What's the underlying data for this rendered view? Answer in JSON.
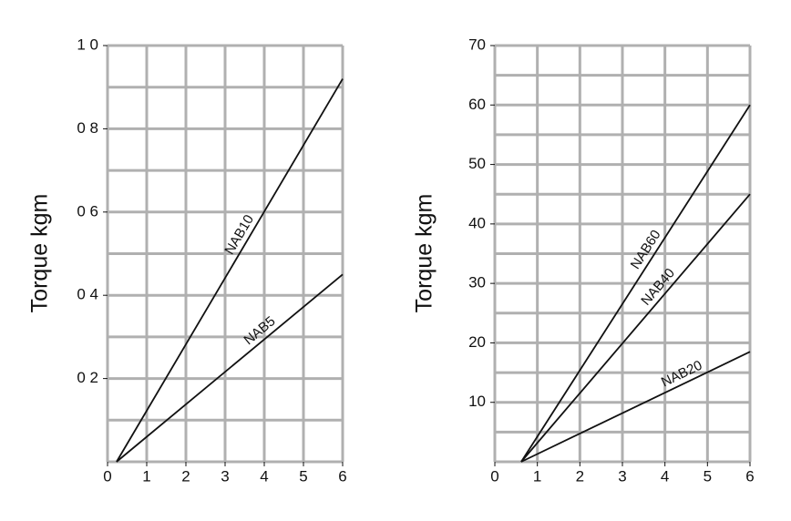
{
  "chart_data": [
    {
      "type": "line",
      "ylabel": "Torque kgm",
      "xlim": [
        0,
        6
      ],
      "xticks": [
        0,
        1,
        2,
        3,
        4,
        5,
        6
      ],
      "ylim": [
        0,
        1.0
      ],
      "yticks": [
        {
          "value": 0.2,
          "label": "0 2"
        },
        {
          "value": 0.4,
          "label": "0 4"
        },
        {
          "value": 0.6,
          "label": "0 6"
        },
        {
          "value": 0.8,
          "label": "0 8"
        },
        {
          "value": 1.0,
          "label": "1 0"
        }
      ],
      "grid": true,
      "series": [
        {
          "name": "NAB10",
          "color": "#111111",
          "x": [
            0.23,
            6
          ],
          "values": [
            0,
            0.92
          ]
        },
        {
          "name": "NAB5",
          "color": "#111111",
          "x": [
            0.23,
            6
          ],
          "values": [
            0,
            0.45
          ]
        }
      ]
    },
    {
      "type": "line",
      "ylabel": "Torque kgm",
      "xlim": [
        0,
        6
      ],
      "xticks": [
        0,
        1,
        2,
        3,
        4,
        5,
        6
      ],
      "ylim": [
        0,
        70
      ],
      "yticks": [
        10,
        20,
        30,
        40,
        50,
        60,
        70
      ],
      "grid": true,
      "series": [
        {
          "name": "NAB60",
          "color": "#111111",
          "x": [
            0.62,
            6
          ],
          "values": [
            0,
            60
          ]
        },
        {
          "name": "NAB40",
          "color": "#111111",
          "x": [
            0.62,
            6
          ],
          "values": [
            0,
            45
          ]
        },
        {
          "name": "NAB20",
          "color": "#111111",
          "x": [
            0.62,
            6
          ],
          "values": [
            0,
            18.5
          ]
        }
      ]
    }
  ]
}
